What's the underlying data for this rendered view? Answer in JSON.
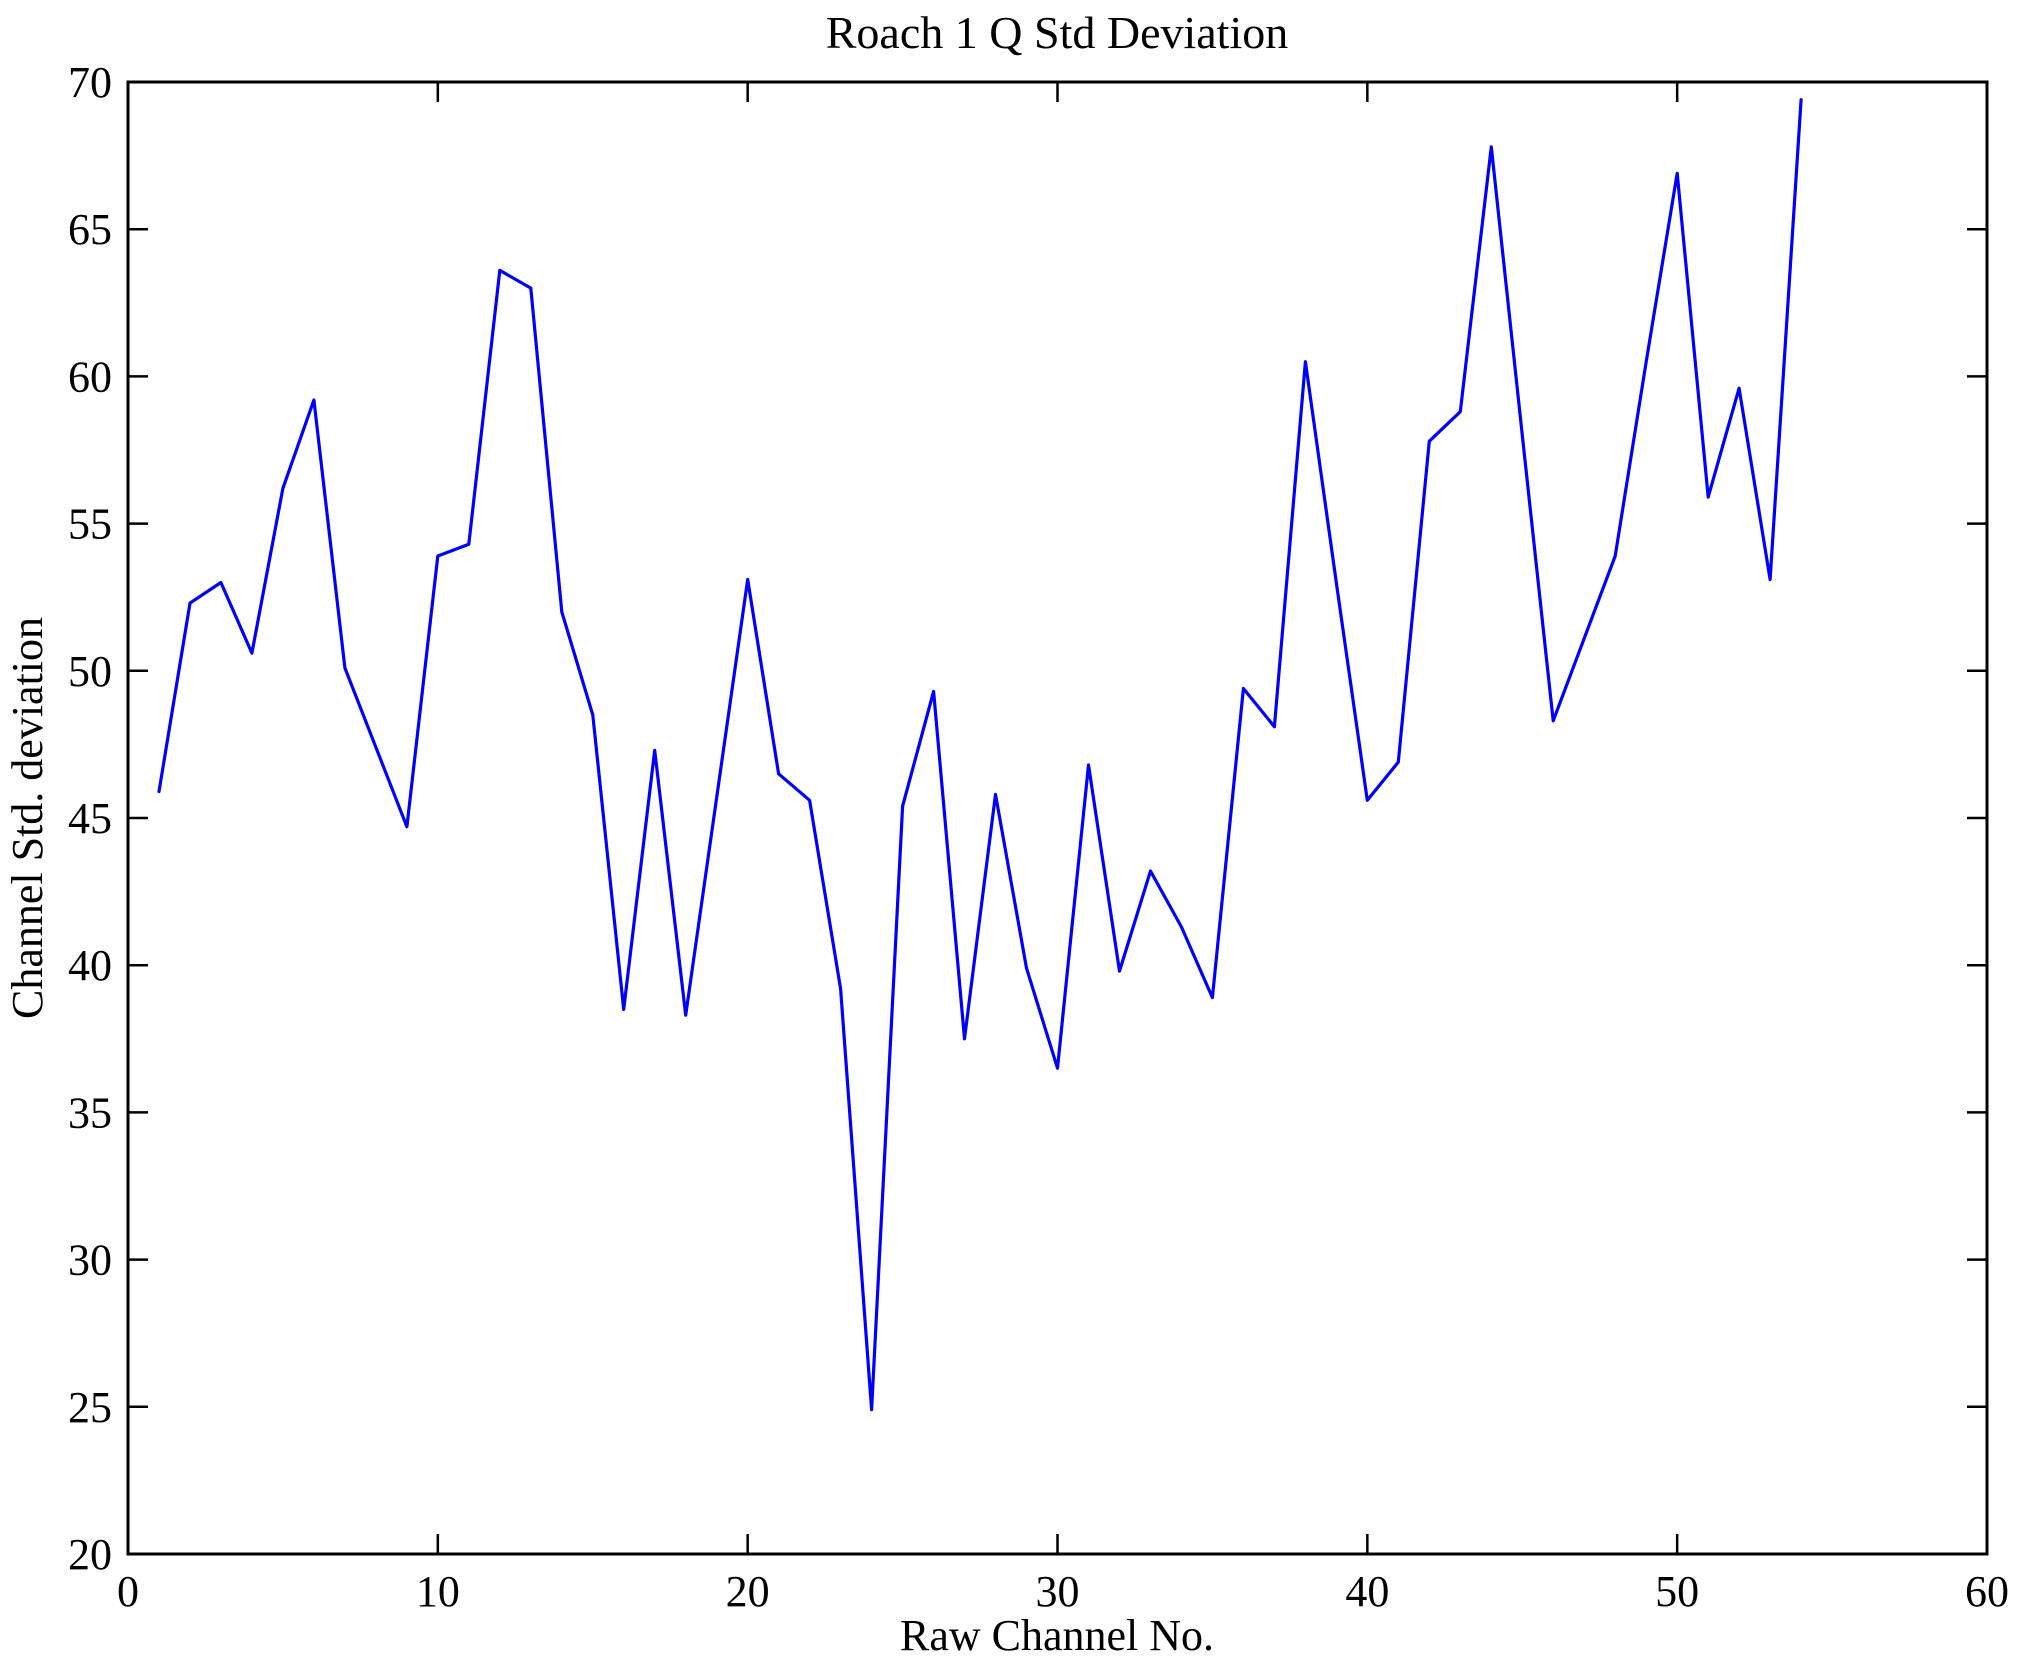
{
  "figure": {
    "background": "#ffffff",
    "axis_color": "#000000"
  },
  "chart_data": {
    "type": "line",
    "title": "Roach 1 Q Std Deviation",
    "xlabel": "Raw Channel No.",
    "ylabel": "Channel Std. deviation",
    "xlim": [
      0,
      60
    ],
    "ylim": [
      20,
      70
    ],
    "xticks": [
      0,
      10,
      20,
      30,
      40,
      50,
      60
    ],
    "yticks": [
      20,
      25,
      30,
      35,
      40,
      45,
      50,
      55,
      60,
      65,
      70
    ],
    "grid": false,
    "legend": null,
    "line_color": "#0000ff",
    "x": [
      1,
      2,
      3,
      4,
      5,
      6,
      7,
      8,
      9,
      10,
      11,
      12,
      13,
      14,
      15,
      16,
      17,
      18,
      19,
      20,
      21,
      22,
      23,
      24,
      25,
      26,
      27,
      28,
      29,
      30,
      31,
      32,
      33,
      34,
      35,
      36,
      37,
      38,
      39,
      40,
      41,
      42,
      43,
      44,
      45,
      46,
      47,
      48,
      49,
      50,
      51,
      52,
      53,
      54
    ],
    "values": [
      45.9,
      52.3,
      53.0,
      50.6,
      56.2,
      59.2,
      50.1,
      47.4,
      44.7,
      53.9,
      54.3,
      63.6,
      63.0,
      52.0,
      48.5,
      38.5,
      47.3,
      38.3,
      45.7,
      53.1,
      46.5,
      45.6,
      39.2,
      24.9,
      45.4,
      49.3,
      37.5,
      45.8,
      39.9,
      36.5,
      46.8,
      39.8,
      43.2,
      41.3,
      38.9,
      49.4,
      48.1,
      60.5,
      53.0,
      45.6,
      46.9,
      57.8,
      58.8,
      67.8,
      58.0,
      48.3,
      51.1,
      53.9,
      60.5,
      66.9,
      55.9,
      59.6,
      53.1,
      69.4
    ]
  }
}
